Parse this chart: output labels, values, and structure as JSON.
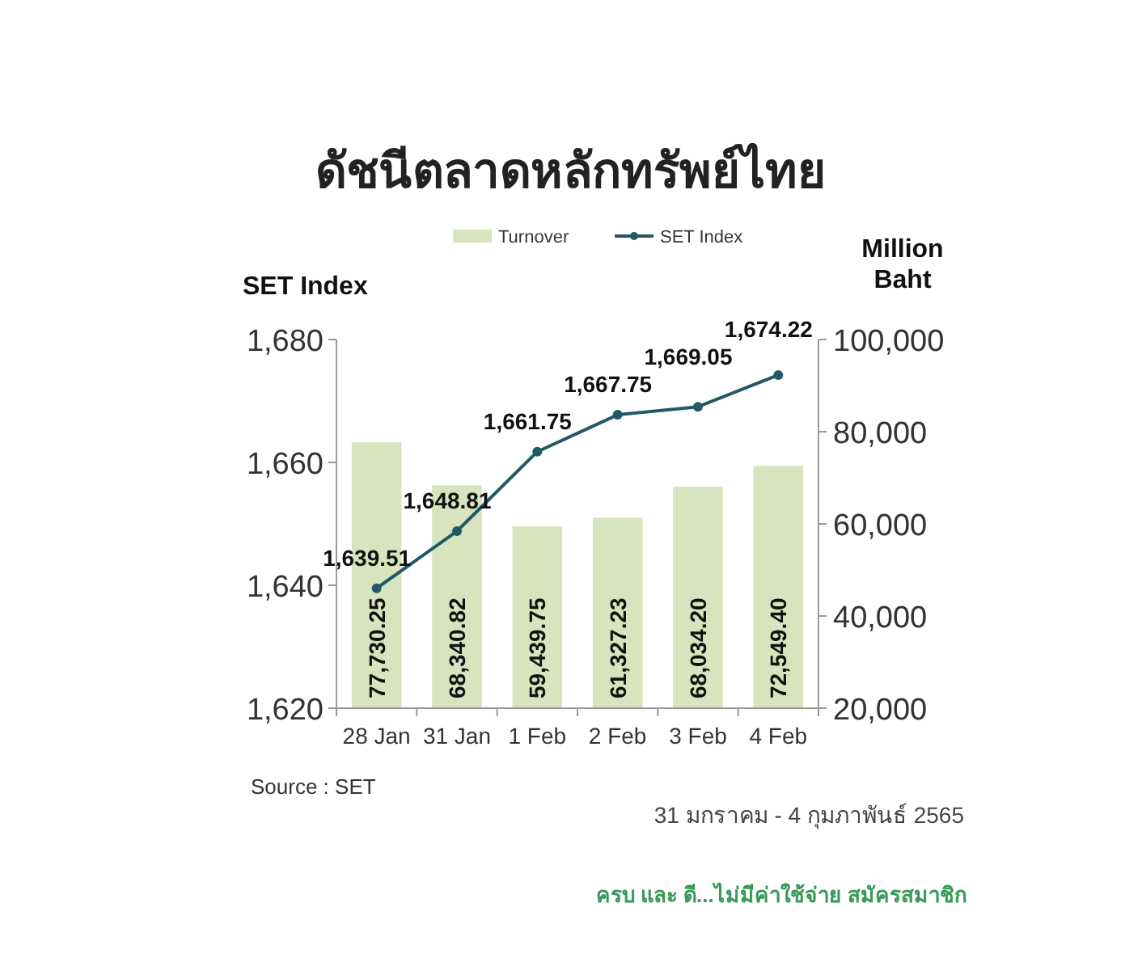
{
  "chart_data": {
    "type": "bar",
    "title": "ดัชนีตลาดหลักทรัพย์ไทย",
    "categories": [
      "28 Jan",
      "31 Jan",
      "1 Feb",
      "2 Feb",
      "3 Feb",
      "4 Feb"
    ],
    "series": [
      {
        "name": "Turnover",
        "axis": "y2",
        "color": "#d7e4bd",
        "values": [
          77730.25,
          68340.82,
          59439.75,
          61327.23,
          68034.2,
          72549.4
        ],
        "value_labels": [
          "77,730.25",
          "68,340.82",
          "59,439.75",
          "61,327.23",
          "68,034.20",
          "72,549.40"
        ]
      },
      {
        "name": "SET Index",
        "type": "line",
        "axis": "y",
        "color": "#215967",
        "values": [
          1639.51,
          1648.81,
          1661.75,
          1667.75,
          1669.05,
          1674.22
        ],
        "value_labels": [
          "1,639.51",
          "1,648.81",
          "1,661.75",
          "1,667.75",
          "1,669.05",
          "1,674.22"
        ]
      }
    ],
    "ylabel": "SET Index",
    "y2label": "Million Baht",
    "ylim": [
      1620,
      1680
    ],
    "yticks": [
      {
        "value": 1620,
        "label": "1,620"
      },
      {
        "value": 1640,
        "label": "1,640"
      },
      {
        "value": 1660,
        "label": "1,660"
      },
      {
        "value": 1680,
        "label": "1,680"
      }
    ],
    "y2lim": [
      20000,
      100000
    ],
    "y2ticks": [
      {
        "value": 20000,
        "label": "20,000"
      },
      {
        "value": 40000,
        "label": "40,000"
      },
      {
        "value": 60000,
        "label": "60,000"
      },
      {
        "value": 80000,
        "label": "80,000"
      },
      {
        "value": 100000,
        "label": "100,000"
      }
    ],
    "legend": "top",
    "grid": false,
    "marker": "circle",
    "line_style": "solid",
    "annotations": [
      "Source : SET",
      "31 มกราคม - 4 กุมภาพันธ์ 2565",
      "ครบ และ ดี...ไม่มีค่าใช้จ่าย สมัครสมาชิก"
    ]
  }
}
